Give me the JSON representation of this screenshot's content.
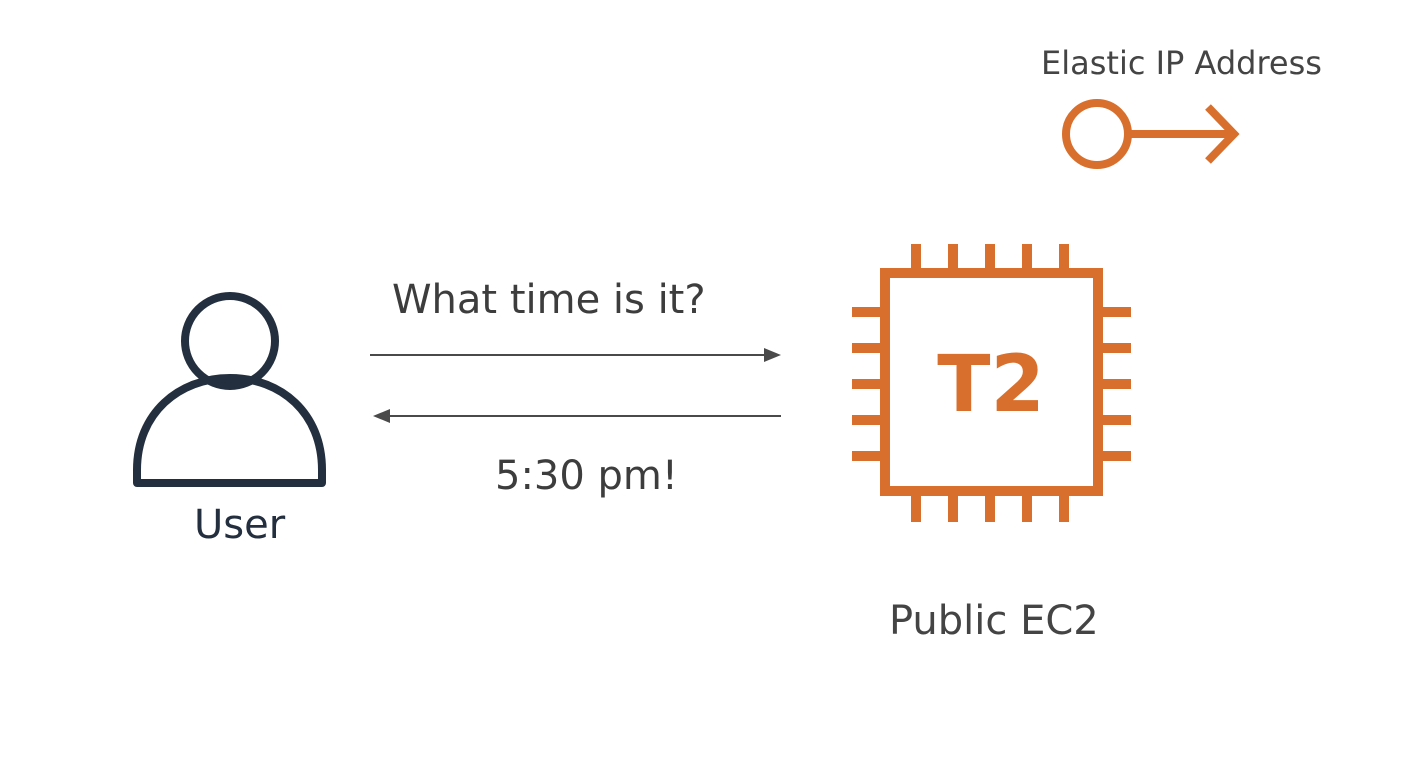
{
  "diagram": {
    "elastic_ip": {
      "label": "Elastic IP Address",
      "icon": "elastic-ip-icon"
    },
    "user": {
      "label": "User",
      "icon": "user-icon"
    },
    "ec2": {
      "chip_text": "T2",
      "label": "Public EC2",
      "icon": "ec2-chip-icon"
    },
    "request": {
      "label": "What time is it?"
    },
    "response": {
      "label": "5:30 pm!"
    },
    "colors": {
      "aws_orange": "#d86f2c",
      "user_navy": "#232f3e",
      "arrow_gray": "#4a4a4a",
      "text_gray": "#444444"
    }
  }
}
